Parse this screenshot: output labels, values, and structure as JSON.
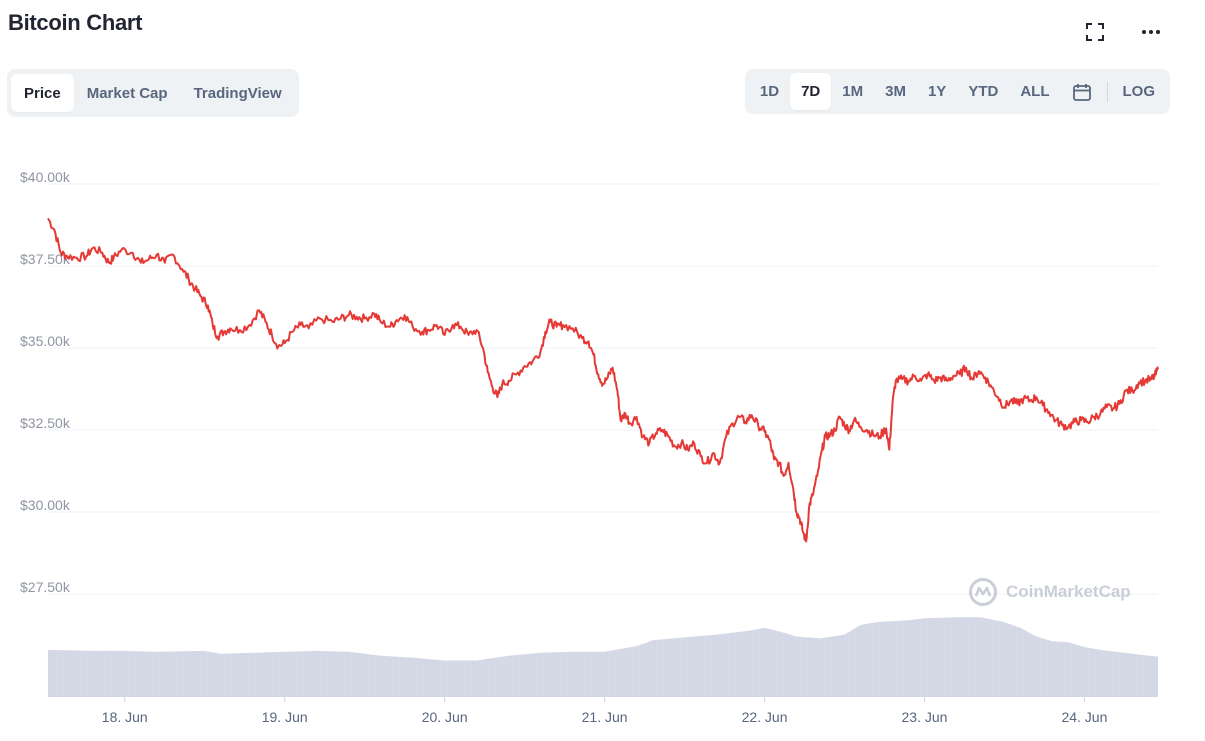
{
  "header": {
    "title": "Bitcoin Chart"
  },
  "icons": {
    "expand": "expand-icon",
    "more": "more-options-icon",
    "calendar": "calendar-icon",
    "logo": "coinmarketcap-logo-icon"
  },
  "view_tabs": [
    {
      "label": "Price",
      "active": true
    },
    {
      "label": "Market Cap",
      "active": false
    },
    {
      "label": "TradingView",
      "active": false
    }
  ],
  "range_tabs": [
    {
      "label": "1D",
      "active": false
    },
    {
      "label": "7D",
      "active": true
    },
    {
      "label": "1M",
      "active": false
    },
    {
      "label": "3M",
      "active": false
    },
    {
      "label": "1Y",
      "active": false
    },
    {
      "label": "YTD",
      "active": false
    },
    {
      "label": "ALL",
      "active": false
    }
  ],
  "log_label": "LOG",
  "watermark": "CoinMarketCap",
  "colors": {
    "line": "#e53935",
    "volume": "#d1d6e4",
    "grid": "#eff2f5",
    "axis_text": "#8f95a3"
  },
  "chart_data": {
    "type": "line",
    "title": "",
    "y_axis": {
      "ticks": [
        27500,
        30000,
        32500,
        35000,
        37500,
        40000
      ],
      "tick_labels": [
        "$27.50k",
        "$30.00k",
        "$32.50k",
        "$35.00k",
        "$37.50k",
        "$40.00k"
      ],
      "range": [
        27500,
        40000
      ]
    },
    "x_axis": {
      "ticks": [
        18.0,
        19.0,
        20.0,
        21.0,
        22.0,
        23.0,
        24.0
      ],
      "tick_labels": [
        "18. Jun",
        "19. Jun",
        "20. Jun",
        "21. Jun",
        "22. Jun",
        "23. Jun",
        "24. Jun"
      ],
      "range": [
        17.52,
        24.46
      ]
    },
    "grid": true,
    "series": [
      {
        "values": [
          [
            17.52,
            38950
          ],
          [
            17.56,
            38600
          ],
          [
            17.6,
            37900
          ],
          [
            17.64,
            37800
          ],
          [
            17.7,
            37750
          ],
          [
            17.76,
            37800
          ],
          [
            17.8,
            38050
          ],
          [
            17.86,
            37900
          ],
          [
            17.9,
            37600
          ],
          [
            17.93,
            37750
          ],
          [
            17.98,
            38000
          ],
          [
            18.05,
            37900
          ],
          [
            18.1,
            37600
          ],
          [
            18.15,
            37700
          ],
          [
            18.2,
            37850
          ],
          [
            18.25,
            37600
          ],
          [
            18.3,
            37850
          ],
          [
            18.36,
            37400
          ],
          [
            18.4,
            37100
          ],
          [
            18.44,
            36800
          ],
          [
            18.48,
            36550
          ],
          [
            18.52,
            36300
          ],
          [
            18.55,
            35700
          ],
          [
            18.58,
            35350
          ],
          [
            18.62,
            35500
          ],
          [
            18.66,
            35600
          ],
          [
            18.72,
            35550
          ],
          [
            18.78,
            35700
          ],
          [
            18.84,
            36150
          ],
          [
            18.88,
            35800
          ],
          [
            18.92,
            35400
          ],
          [
            18.96,
            35050
          ],
          [
            19.0,
            35150
          ],
          [
            19.05,
            35500
          ],
          [
            19.1,
            35700
          ],
          [
            19.15,
            35600
          ],
          [
            19.22,
            35900
          ],
          [
            19.3,
            35800
          ],
          [
            19.35,
            35900
          ],
          [
            19.4,
            36000
          ],
          [
            19.45,
            35950
          ],
          [
            19.5,
            35900
          ],
          [
            19.56,
            36050
          ],
          [
            19.6,
            35800
          ],
          [
            19.66,
            35650
          ],
          [
            19.7,
            35850
          ],
          [
            19.75,
            36000
          ],
          [
            19.8,
            35650
          ],
          [
            19.86,
            35500
          ],
          [
            19.9,
            35550
          ],
          [
            19.95,
            35700
          ],
          [
            20.0,
            35400
          ],
          [
            20.05,
            35700
          ],
          [
            20.1,
            35650
          ],
          [
            20.15,
            35400
          ],
          [
            20.2,
            35550
          ],
          [
            20.24,
            35000
          ],
          [
            20.27,
            34250
          ],
          [
            20.3,
            33800
          ],
          [
            20.33,
            33500
          ],
          [
            20.36,
            33900
          ],
          [
            20.4,
            34000
          ],
          [
            20.45,
            34200
          ],
          [
            20.5,
            34450
          ],
          [
            20.55,
            34600
          ],
          [
            20.6,
            34900
          ],
          [
            20.63,
            35500
          ],
          [
            20.66,
            35800
          ],
          [
            20.7,
            35650
          ],
          [
            20.74,
            35700
          ],
          [
            20.8,
            35600
          ],
          [
            20.86,
            35300
          ],
          [
            20.9,
            35200
          ],
          [
            20.93,
            34800
          ],
          [
            20.96,
            34200
          ],
          [
            20.99,
            33900
          ],
          [
            21.02,
            34100
          ],
          [
            21.05,
            34400
          ],
          [
            21.08,
            33700
          ],
          [
            21.1,
            32800
          ],
          [
            21.13,
            33000
          ],
          [
            21.16,
            32700
          ],
          [
            21.2,
            32900
          ],
          [
            21.24,
            32300
          ],
          [
            21.28,
            32100
          ],
          [
            21.32,
            32400
          ],
          [
            21.36,
            32500
          ],
          [
            21.4,
            32300
          ],
          [
            21.44,
            32000
          ],
          [
            21.48,
            32100
          ],
          [
            21.52,
            31900
          ],
          [
            21.56,
            32100
          ],
          [
            21.6,
            31700
          ],
          [
            21.64,
            31500
          ],
          [
            21.68,
            31800
          ],
          [
            21.72,
            31500
          ],
          [
            21.76,
            32300
          ],
          [
            21.8,
            32700
          ],
          [
            21.84,
            32900
          ],
          [
            21.88,
            32750
          ],
          [
            21.92,
            32950
          ],
          [
            21.96,
            32650
          ],
          [
            22.0,
            32450
          ],
          [
            22.03,
            32200
          ],
          [
            22.06,
            31600
          ],
          [
            22.09,
            31500
          ],
          [
            22.12,
            31100
          ],
          [
            22.15,
            31500
          ],
          [
            22.18,
            30700
          ],
          [
            22.2,
            30000
          ],
          [
            22.22,
            29800
          ],
          [
            22.24,
            29400
          ],
          [
            22.26,
            29100
          ],
          [
            22.28,
            30200
          ],
          [
            22.3,
            30500
          ],
          [
            22.33,
            31100
          ],
          [
            22.36,
            31900
          ],
          [
            22.38,
            32300
          ],
          [
            22.41,
            32350
          ],
          [
            22.44,
            32500
          ],
          [
            22.47,
            32900
          ],
          [
            22.5,
            32650
          ],
          [
            22.53,
            32500
          ],
          [
            22.56,
            32800
          ],
          [
            22.6,
            32600
          ],
          [
            22.64,
            32500
          ],
          [
            22.68,
            32350
          ],
          [
            22.72,
            32300
          ],
          [
            22.76,
            32550
          ],
          [
            22.78,
            31900
          ],
          [
            22.8,
            33300
          ],
          [
            22.82,
            34000
          ],
          [
            22.86,
            34050
          ],
          [
            22.9,
            34000
          ],
          [
            22.94,
            34150
          ],
          [
            22.98,
            34000
          ],
          [
            23.02,
            34200
          ],
          [
            23.06,
            34000
          ],
          [
            23.1,
            34100
          ],
          [
            23.14,
            34000
          ],
          [
            23.18,
            34150
          ],
          [
            23.22,
            34200
          ],
          [
            23.26,
            34400
          ],
          [
            23.3,
            34050
          ],
          [
            23.34,
            34300
          ],
          [
            23.38,
            34100
          ],
          [
            23.42,
            33800
          ],
          [
            23.46,
            33500
          ],
          [
            23.5,
            33200
          ],
          [
            23.54,
            33400
          ],
          [
            23.58,
            33300
          ],
          [
            23.62,
            33450
          ],
          [
            23.66,
            33400
          ],
          [
            23.7,
            33500
          ],
          [
            23.74,
            33250
          ],
          [
            23.78,
            33050
          ],
          [
            23.82,
            32800
          ],
          [
            23.86,
            32650
          ],
          [
            23.9,
            32600
          ],
          [
            23.94,
            32750
          ],
          [
            23.98,
            32800
          ],
          [
            24.02,
            32750
          ],
          [
            24.06,
            32900
          ],
          [
            24.1,
            33000
          ],
          [
            24.14,
            33200
          ],
          [
            24.18,
            33150
          ],
          [
            24.22,
            33300
          ],
          [
            24.26,
            33700
          ],
          [
            24.3,
            33700
          ],
          [
            24.34,
            33950
          ],
          [
            24.38,
            34000
          ],
          [
            24.42,
            34050
          ],
          [
            24.44,
            34150
          ],
          [
            24.46,
            34350
          ]
        ]
      }
    ],
    "volume": {
      "values": [
        [
          17.52,
          0.48
        ],
        [
          17.8,
          0.47
        ],
        [
          18.0,
          0.47
        ],
        [
          18.2,
          0.46
        ],
        [
          18.5,
          0.47
        ],
        [
          18.6,
          0.44
        ],
        [
          18.8,
          0.45
        ],
        [
          19.0,
          0.46
        ],
        [
          19.2,
          0.47
        ],
        [
          19.4,
          0.46
        ],
        [
          19.6,
          0.42
        ],
        [
          19.8,
          0.4
        ],
        [
          20.0,
          0.37
        ],
        [
          20.2,
          0.37
        ],
        [
          20.4,
          0.42
        ],
        [
          20.6,
          0.45
        ],
        [
          20.8,
          0.46
        ],
        [
          21.0,
          0.46
        ],
        [
          21.2,
          0.52
        ],
        [
          21.3,
          0.58
        ],
        [
          21.5,
          0.61
        ],
        [
          21.7,
          0.64
        ],
        [
          21.9,
          0.68
        ],
        [
          22.0,
          0.71
        ],
        [
          22.1,
          0.67
        ],
        [
          22.2,
          0.62
        ],
        [
          22.35,
          0.6
        ],
        [
          22.5,
          0.64
        ],
        [
          22.6,
          0.74
        ],
        [
          22.7,
          0.77
        ],
        [
          22.8,
          0.78
        ],
        [
          22.9,
          0.79
        ],
        [
          23.0,
          0.81
        ],
        [
          23.2,
          0.82
        ],
        [
          23.35,
          0.82
        ],
        [
          23.5,
          0.77
        ],
        [
          23.6,
          0.71
        ],
        [
          23.7,
          0.62
        ],
        [
          23.8,
          0.57
        ],
        [
          23.9,
          0.56
        ],
        [
          24.0,
          0.51
        ],
        [
          24.1,
          0.48
        ],
        [
          24.2,
          0.46
        ],
        [
          24.3,
          0.44
        ],
        [
          24.46,
          0.41
        ]
      ]
    }
  }
}
